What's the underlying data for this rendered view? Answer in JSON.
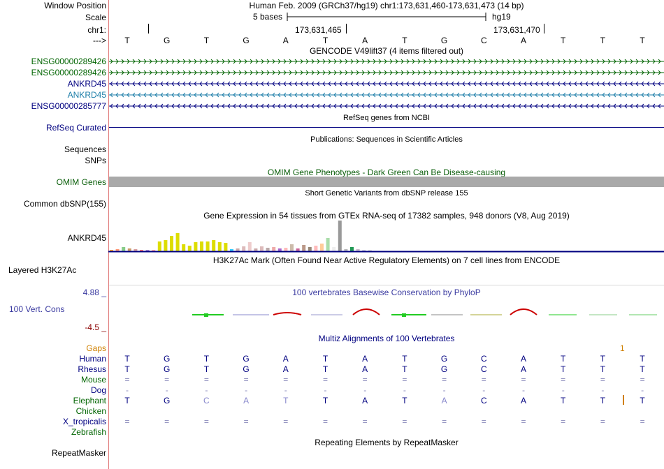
{
  "colors": {
    "dark_blue": "#000080",
    "dark_green": "#006400",
    "track_blue": "#1c7ea8",
    "omim_green": "#0a5e0a",
    "gray": "#a9a9a9",
    "orange": "#d08000",
    "cons_red": "#cc0000",
    "cons_green": "#22cc22",
    "divider_red": "#e07a7a"
  },
  "header": {
    "window_position_label": "Window Position",
    "window_position_value": "Human Feb. 2009 (GRCh37/hg19)   chr1:173,631,460-173,631,473 (14 bp)",
    "scale_label": "Scale",
    "scale_value": "5 bases",
    "assembly": "hg19",
    "chrom_label": "chr1:",
    "coord_1": "173,631,465",
    "coord_2": "173,631,470",
    "arrow_label": "--->",
    "bases": [
      "T",
      "G",
      "T",
      "G",
      "A",
      "T",
      "A",
      "T",
      "G",
      "C",
      "A",
      "T",
      "T",
      "T"
    ]
  },
  "gencode": {
    "title": "GENCODE V49lift37 (4 items filtered out)",
    "tracks": [
      {
        "label": "ENSG00000289426",
        "strand": "+",
        "color": "#006400"
      },
      {
        "label": "ENSG00000289426",
        "strand": "+",
        "color": "#006400"
      },
      {
        "label": "ANKRD45",
        "strand": "-",
        "color": "#000080"
      },
      {
        "label": "ANKRD45",
        "strand": "-",
        "color": "#1c7ea8"
      },
      {
        "label": "ENSG00000285777",
        "strand": "-",
        "color": "#000080"
      }
    ]
  },
  "refseq": {
    "title": "RefSeq genes from NCBI",
    "label": "RefSeq Curated"
  },
  "publications": {
    "title": "Publications: Sequences in Scientific Articles",
    "label1": "Sequences",
    "label2": "SNPs"
  },
  "omim": {
    "title": "OMIM Gene Phenotypes - Dark Green Can Be Disease-causing",
    "label": "OMIM Genes"
  },
  "dbsnp": {
    "title": "Short Genetic Variants from dbSNP release 155",
    "label": "Common dbSNP(155)"
  },
  "gtex": {
    "title": "Gene Expression in 54 tissues from GTEx RNA-seq of 17382 samples, 948 donors (V8, Aug 2019)",
    "label": "ANKRD45"
  },
  "h3k27ac": {
    "title": "H3K27Ac Mark (Often Found Near Active Regulatory Elements) on 7 cell lines from ENCODE",
    "label": "Layered H3K27Ac"
  },
  "conservation": {
    "title": "100 vertebrates Basewise Conservation by PhyloP",
    "label": "100 Vert. Cons",
    "max": "4.88 _",
    "min": "-4.5 _"
  },
  "multiz": {
    "title": "Multiz Alignments of 100 Vertebrates",
    "gaps_label": "Gaps",
    "gap_count": "1",
    "species": [
      {
        "name": "Human",
        "bases": [
          "T",
          "G",
          "T",
          "G",
          "A",
          "T",
          "A",
          "T",
          "G",
          "C",
          "A",
          "T",
          "T",
          "T"
        ]
      },
      {
        "name": "Rhesus",
        "bases": [
          "T",
          "G",
          "T",
          "G",
          "A",
          "T",
          "A",
          "T",
          "G",
          "C",
          "A",
          "T",
          "T",
          "T"
        ]
      },
      {
        "name": "Mouse",
        "bases": [
          "=",
          "=",
          "=",
          "=",
          "=",
          "=",
          "=",
          "=",
          "=",
          "=",
          "=",
          "=",
          "=",
          "="
        ]
      },
      {
        "name": "Dog",
        "bases": [
          "-",
          "-",
          "-",
          "-",
          "-",
          "-",
          "-",
          "-",
          "-",
          "-",
          "-",
          "-",
          "-",
          "-"
        ]
      },
      {
        "name": "Elephant",
        "bases": [
          "T",
          "G",
          "C",
          "A",
          "T",
          "T",
          "A",
          "T",
          "A",
          "C",
          "A",
          "T",
          "T",
          "T"
        ]
      },
      {
        "name": "Chicken",
        "bases": [
          "",
          "",
          "",
          "",
          "",
          "",
          "",
          "",
          "",
          "",
          "",
          "",
          "",
          ""
        ]
      },
      {
        "name": "X_tropicalis",
        "bases": [
          "=",
          "=",
          "=",
          "=",
          "=",
          "=",
          "=",
          "=",
          "=",
          "=",
          "=",
          "=",
          "=",
          "="
        ]
      },
      {
        "name": "Zebrafish",
        "bases": [
          "",
          "",
          "",
          "",
          "",
          "",
          "",
          "",
          "",
          "",
          "",
          "",
          "",
          ""
        ]
      }
    ]
  },
  "repeatmasker": {
    "title": "Repeating Elements by RepeatMasker",
    "label": "RepeatMasker"
  }
}
